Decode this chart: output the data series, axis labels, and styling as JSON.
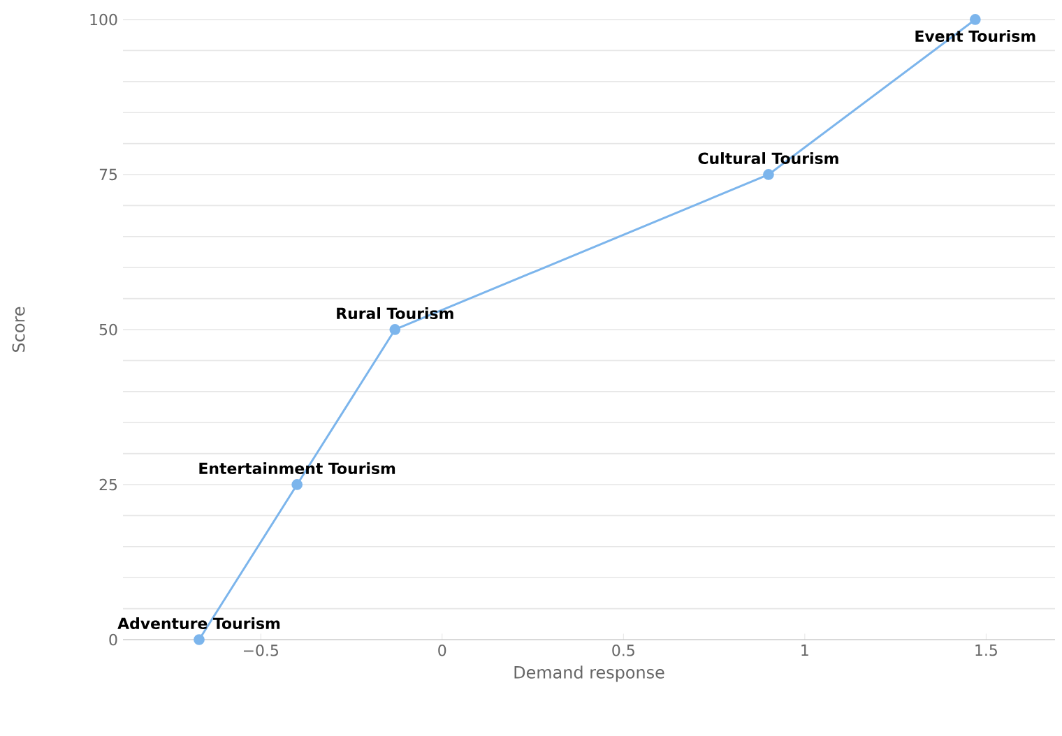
{
  "chart_data": {
    "type": "line",
    "xlabel": "Demand response",
    "ylabel": "Score",
    "series": [
      {
        "color": "#7cb5ec",
        "x": [
          -0.67,
          -0.4,
          -0.13,
          0.9,
          1.47
        ],
        "values": [
          0,
          25,
          50,
          75,
          100
        ]
      }
    ],
    "annotations": [
      {
        "text": "Adventure Tourism",
        "x": -0.67,
        "y": 0
      },
      {
        "text": "Entertainment Tourism",
        "x": -0.4,
        "y": 25
      },
      {
        "text": "Rural Tourism",
        "x": -0.13,
        "y": 50
      },
      {
        "text": "Cultural Tourism",
        "x": 0.9,
        "y": 75
      },
      {
        "text": "Event Tourism",
        "x": 1.47,
        "y": 100
      }
    ],
    "xlim": [
      -0.88,
      1.69
    ],
    "ylim": [
      0,
      100
    ],
    "xticks": [
      {
        "value": -0.5,
        "label": "−0.5"
      },
      0,
      0.5,
      1,
      1.5
    ],
    "yticks": [
      0,
      {
        "value": 5,
        "label": null
      },
      {
        "value": 10,
        "label": null
      },
      {
        "value": 15,
        "label": null
      },
      {
        "value": 20,
        "label": null
      },
      25,
      {
        "value": 30,
        "label": null
      },
      {
        "value": 35,
        "label": null
      },
      {
        "value": 40,
        "label": null
      },
      {
        "value": 45,
        "label": null
      },
      50,
      {
        "value": 55,
        "label": null
      },
      {
        "value": 60,
        "label": null
      },
      {
        "value": 65,
        "label": null
      },
      {
        "value": 70,
        "label": null
      },
      75,
      {
        "value": 80,
        "label": null
      },
      {
        "value": 85,
        "label": null
      },
      {
        "value": 90,
        "label": null
      },
      {
        "value": 95,
        "label": null
      },
      100
    ],
    "grid": "y",
    "marker": "circle",
    "line_style": "solid"
  }
}
